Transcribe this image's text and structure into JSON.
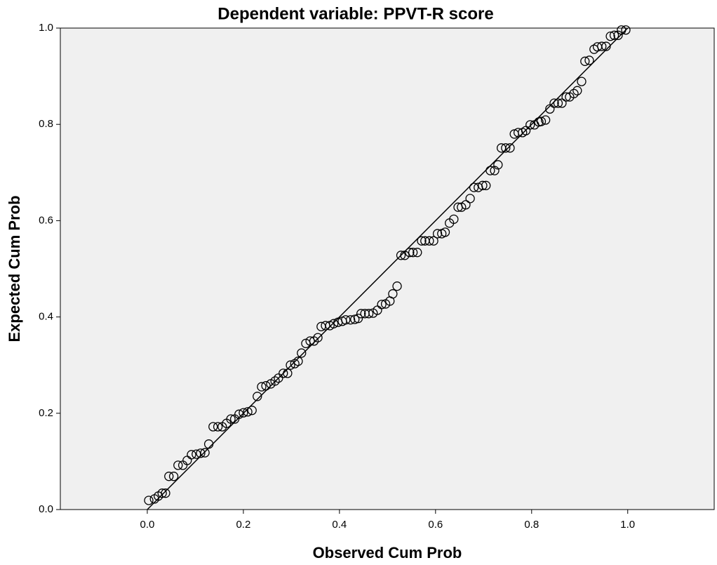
{
  "chart_data": {
    "type": "scatter",
    "title": "Dependent variable: PPVT-R score",
    "xlabel": "Observed Cum Prob",
    "ylabel": "Expected Cum Prob",
    "xlim": [
      -0.181,
      1.18
    ],
    "ylim": [
      0,
      1
    ],
    "xticks": [
      {
        "value": 0,
        "label": "0.0"
      },
      0.2,
      0.4,
      0.6,
      0.8,
      {
        "value": 1,
        "label": "1.0"
      }
    ],
    "yticks": [
      {
        "value": 0,
        "label": "0.0"
      },
      0.2,
      0.4,
      0.6,
      0.8,
      {
        "value": 1,
        "label": "1.0"
      }
    ],
    "grid": false,
    "background": "#f0f0f0",
    "reference_line": {
      "x": [
        0,
        1
      ],
      "y": [
        0,
        1
      ],
      "color": "#000000"
    },
    "series": [
      {
        "color": "#000000",
        "x": [
          0.003,
          0.015,
          0.023,
          0.031,
          0.038,
          0.045,
          0.055,
          0.064,
          0.074,
          0.083,
          0.092,
          0.102,
          0.111,
          0.12,
          0.128,
          0.137,
          0.147,
          0.156,
          0.165,
          0.174,
          0.182,
          0.191,
          0.2,
          0.209,
          0.218,
          0.229,
          0.238,
          0.247,
          0.257,
          0.266,
          0.273,
          0.283,
          0.292,
          0.298,
          0.307,
          0.314,
          0.321,
          0.33,
          0.339,
          0.347,
          0.355,
          0.362,
          0.371,
          0.38,
          0.388,
          0.397,
          0.406,
          0.413,
          0.423,
          0.432,
          0.439,
          0.445,
          0.453,
          0.461,
          0.47,
          0.479,
          0.488,
          0.496,
          0.505,
          0.511,
          0.52,
          0.528,
          0.536,
          0.546,
          0.553,
          0.562,
          0.571,
          0.578,
          0.587,
          0.596,
          0.604,
          0.613,
          0.62,
          0.629,
          0.638,
          0.647,
          0.654,
          0.663,
          0.672,
          0.68,
          0.689,
          0.698,
          0.705,
          0.714,
          0.723,
          0.73,
          0.737,
          0.746,
          0.755,
          0.764,
          0.772,
          0.781,
          0.788,
          0.797,
          0.806,
          0.815,
          0.82,
          0.829,
          0.838,
          0.847,
          0.855,
          0.863,
          0.872,
          0.879,
          0.888,
          0.895,
          0.904,
          0.911,
          0.92,
          0.93,
          0.937,
          0.946,
          0.955,
          0.964,
          0.972,
          0.98,
          0.987,
          0.996
        ],
        "values": [
          0.019,
          0.022,
          0.028,
          0.034,
          0.034,
          0.069,
          0.069,
          0.092,
          0.092,
          0.102,
          0.114,
          0.115,
          0.117,
          0.118,
          0.136,
          0.172,
          0.172,
          0.172,
          0.179,
          0.188,
          0.188,
          0.198,
          0.201,
          0.203,
          0.206,
          0.235,
          0.255,
          0.257,
          0.261,
          0.267,
          0.273,
          0.283,
          0.283,
          0.3,
          0.303,
          0.308,
          0.325,
          0.345,
          0.35,
          0.35,
          0.357,
          0.38,
          0.382,
          0.382,
          0.386,
          0.389,
          0.391,
          0.394,
          0.394,
          0.395,
          0.397,
          0.407,
          0.407,
          0.407,
          0.408,
          0.414,
          0.426,
          0.427,
          0.433,
          0.448,
          0.464,
          0.528,
          0.528,
          0.534,
          0.534,
          0.534,
          0.558,
          0.558,
          0.558,
          0.558,
          0.573,
          0.573,
          0.576,
          0.595,
          0.603,
          0.628,
          0.628,
          0.633,
          0.646,
          0.669,
          0.669,
          0.673,
          0.673,
          0.704,
          0.704,
          0.716,
          0.751,
          0.751,
          0.751,
          0.78,
          0.783,
          0.783,
          0.787,
          0.799,
          0.799,
          0.805,
          0.806,
          0.809,
          0.832,
          0.844,
          0.844,
          0.844,
          0.857,
          0.857,
          0.864,
          0.87,
          0.889,
          0.931,
          0.933,
          0.956,
          0.961,
          0.962,
          0.962,
          0.983,
          0.985,
          0.985,
          0.996,
          0.996
        ]
      }
    ]
  }
}
